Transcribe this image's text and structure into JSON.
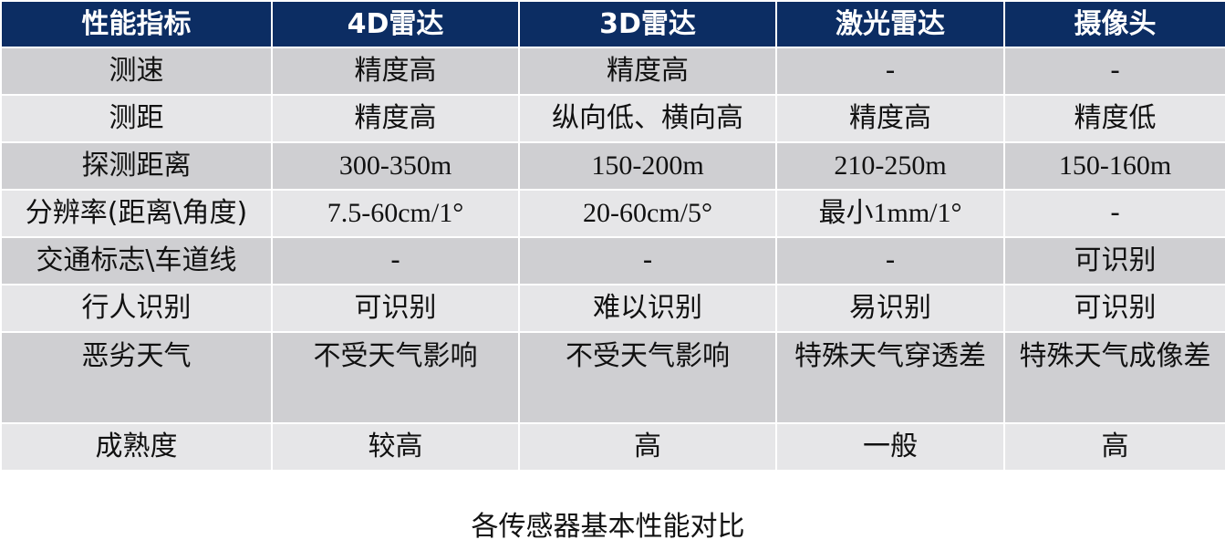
{
  "table": {
    "headers": [
      "性能指标",
      "4D雷达",
      "3D雷达",
      "激光雷达",
      "摄像头"
    ],
    "rows": [
      [
        "测速",
        "精度高",
        "精度高",
        "-",
        "-"
      ],
      [
        "测距",
        "精度高",
        "纵向低、横向高",
        "精度高",
        "精度低"
      ],
      [
        "探测距离",
        "300-350m",
        "150-200m",
        "210-250m",
        "150-160m"
      ],
      [
        "分辨率(距离\\角度)",
        "7.5-60cm/1°",
        "20-60cm/5°",
        "最小1mm/1°",
        "-"
      ],
      [
        "交通标志\\车道线",
        "-",
        "-",
        "-",
        "可识别"
      ],
      [
        "行人识别",
        "可识别",
        "难以识别",
        "易识别",
        "可识别"
      ],
      [
        "恶劣天气",
        "不受天气影响",
        "不受天气影响",
        "特殊天气穿透差",
        "特殊天气成像差"
      ],
      [
        "成熟度",
        "较高",
        "高",
        "一般",
        "高"
      ]
    ]
  },
  "caption": "各传感器基本性能对比",
  "colors": {
    "header_bg": "#0c2d63",
    "header_text": "#ffffff",
    "row_dark": "#cfcfd2",
    "row_light": "#e6e6e8"
  }
}
